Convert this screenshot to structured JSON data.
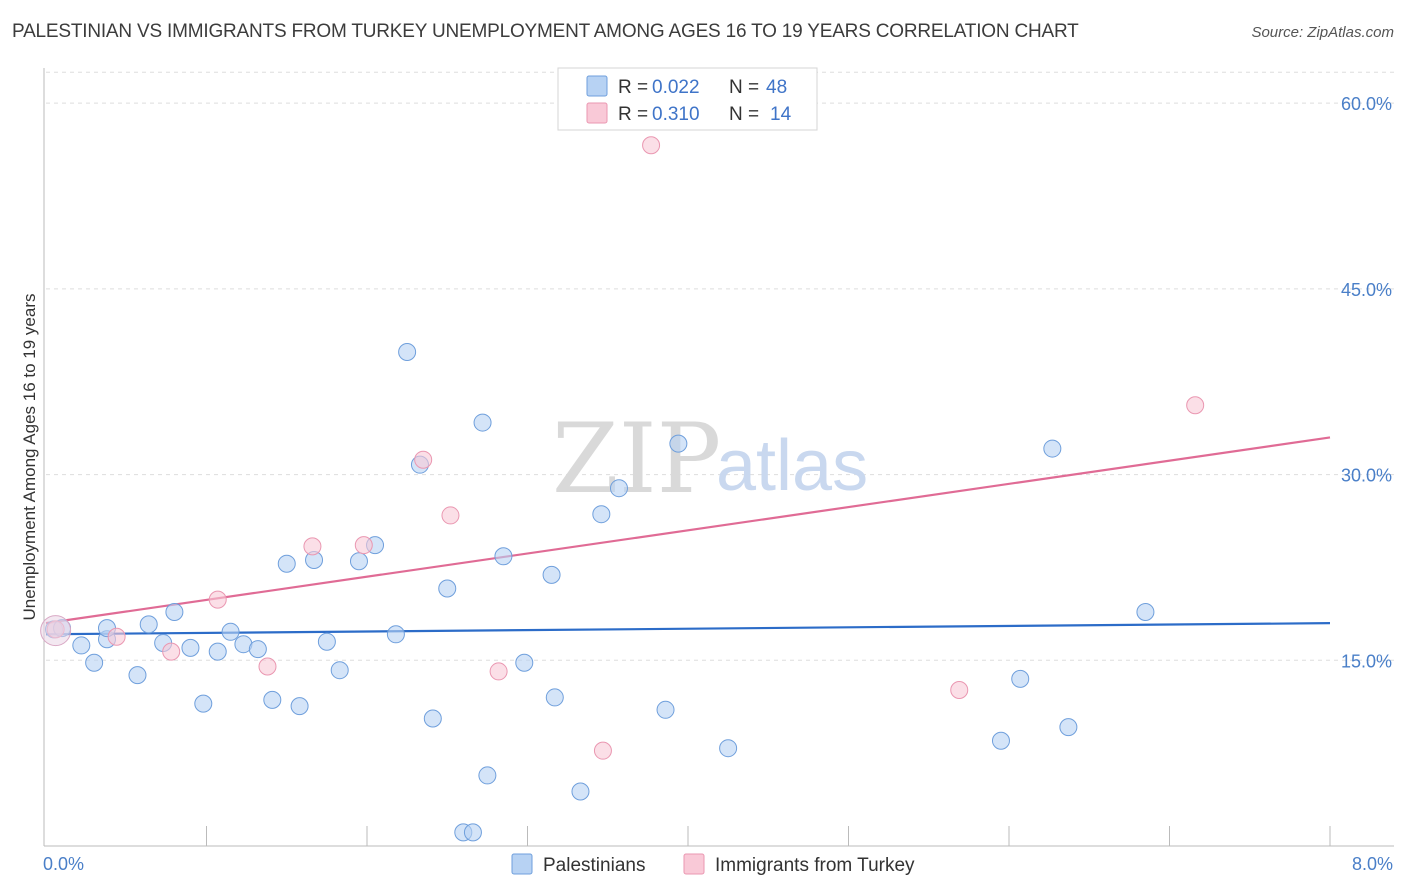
{
  "title": "PALESTINIAN VS IMMIGRANTS FROM TURKEY UNEMPLOYMENT AMONG AGES 16 TO 19 YEARS CORRELATION CHART",
  "source": "Source: ZipAtlas.com",
  "watermark": {
    "zip": "ZIP",
    "atlas": "atlas"
  },
  "legend": {
    "rows": [
      {
        "r_label": "R = ",
        "r_value": "0.022",
        "n_label": "N = ",
        "n_value": "48"
      },
      {
        "r_label": "R = ",
        "r_value": "0.310",
        "n_label": "N = ",
        "n_value": "14"
      }
    ]
  },
  "chart_data": {
    "type": "scatter",
    "xlabel": "",
    "ylabel": "Unemployment Among Ages 16 to 19 years",
    "xlim": [
      0,
      8
    ],
    "ylim": [
      0,
      63
    ],
    "x_tick_labels": [
      {
        "value": 0,
        "label": "0.0%"
      },
      {
        "value": 8,
        "label": "8.0%"
      }
    ],
    "y_tick_labels": [
      {
        "value": 15,
        "label": "15.0%"
      },
      {
        "value": 30,
        "label": "30.0%"
      },
      {
        "value": 45,
        "label": "45.0%"
      },
      {
        "value": 60,
        "label": "60.0%"
      }
    ],
    "series": [
      {
        "name": "Palestinians",
        "fill": "#b7d2f3",
        "stroke": "#6f9fdc",
        "line_color": "#2c6cc8",
        "trend": [
          [
            0,
            17.1
          ],
          [
            8,
            18.0
          ]
        ],
        "points": [
          [
            0.05,
            17.5
          ],
          [
            0.1,
            17.6
          ],
          [
            0.22,
            16.2
          ],
          [
            0.3,
            14.8
          ],
          [
            0.38,
            16.7
          ],
          [
            0.38,
            17.6
          ],
          [
            0.57,
            13.8
          ],
          [
            0.64,
            17.9
          ],
          [
            0.73,
            16.4
          ],
          [
            0.8,
            18.9
          ],
          [
            0.9,
            16.0
          ],
          [
            0.98,
            11.5
          ],
          [
            1.07,
            15.7
          ],
          [
            1.15,
            17.3
          ],
          [
            1.23,
            16.3
          ],
          [
            1.32,
            15.9
          ],
          [
            1.41,
            11.8
          ],
          [
            1.5,
            22.8
          ],
          [
            1.58,
            11.3
          ],
          [
            1.67,
            23.1
          ],
          [
            1.75,
            16.5
          ],
          [
            1.83,
            14.2
          ],
          [
            1.95,
            23.0
          ],
          [
            2.05,
            24.3
          ],
          [
            2.18,
            17.1
          ],
          [
            2.25,
            39.9
          ],
          [
            2.33,
            30.8
          ],
          [
            2.41,
            10.3
          ],
          [
            2.5,
            20.8
          ],
          [
            2.6,
            1.1
          ],
          [
            2.66,
            1.1
          ],
          [
            2.72,
            34.2
          ],
          [
            2.75,
            5.7
          ],
          [
            2.85,
            23.4
          ],
          [
            2.98,
            14.8
          ],
          [
            3.15,
            21.9
          ],
          [
            3.17,
            12.0
          ],
          [
            3.33,
            4.4
          ],
          [
            3.46,
            26.8
          ],
          [
            3.57,
            28.9
          ],
          [
            3.86,
            11.0
          ],
          [
            3.94,
            32.5
          ],
          [
            4.25,
            7.9
          ],
          [
            5.95,
            8.5
          ],
          [
            6.07,
            13.5
          ],
          [
            6.27,
            32.1
          ],
          [
            6.37,
            9.6
          ],
          [
            6.85,
            18.9
          ]
        ]
      },
      {
        "name": "Immigrants from Turkey",
        "fill": "#f9c9d7",
        "stroke": "#ea97b1",
        "line_color": "#e06b95",
        "trend": [
          [
            0,
            18.0
          ],
          [
            8,
            33.0
          ]
        ],
        "points": [
          [
            0.06,
            17.5
          ],
          [
            0.44,
            16.9
          ],
          [
            0.78,
            15.7
          ],
          [
            1.07,
            19.9
          ],
          [
            1.38,
            14.5
          ],
          [
            1.66,
            24.2
          ],
          [
            1.98,
            24.3
          ],
          [
            2.35,
            31.2
          ],
          [
            2.52,
            26.7
          ],
          [
            2.82,
            14.1
          ],
          [
            3.47,
            7.7
          ],
          [
            3.77,
            56.6
          ],
          [
            5.69,
            12.6
          ],
          [
            7.16,
            35.6
          ]
        ]
      }
    ]
  }
}
